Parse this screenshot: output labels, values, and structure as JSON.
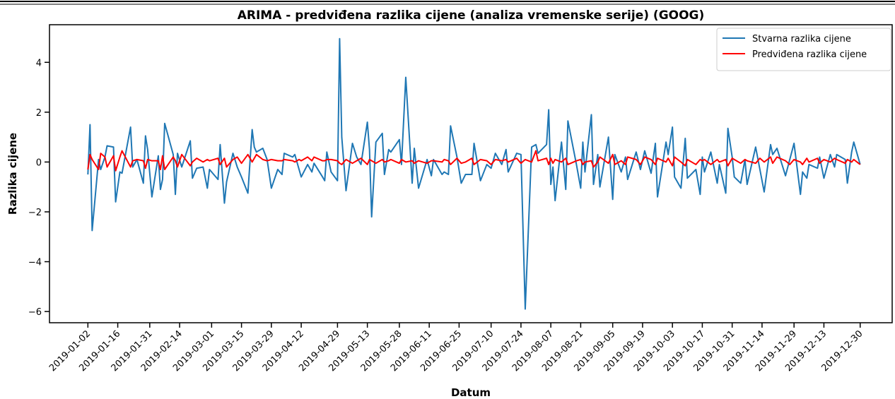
{
  "chart_data": {
    "type": "line",
    "title": "ARIMA - predviđena razlika cijene (analiza vremenske serije) (GOOG)",
    "xlabel": "Datum",
    "ylabel": "Razlika cijene",
    "legend": "upper right",
    "x": [
      "2019-01-02",
      "2019-01-03",
      "2019-01-04",
      "2019-01-07",
      "2019-01-08",
      "2019-01-10",
      "2019-01-11",
      "2019-01-14",
      "2019-01-15",
      "2019-01-17",
      "2019-01-18",
      "2019-01-22",
      "2019-01-23",
      "2019-01-25",
      "2019-01-28",
      "2019-01-29",
      "2019-01-30",
      "2019-02-01",
      "2019-02-04",
      "2019-02-05",
      "2019-02-06",
      "2019-02-07",
      "2019-02-11",
      "2019-02-12",
      "2019-02-13",
      "2019-02-15",
      "2019-02-19",
      "2019-02-20",
      "2019-02-22",
      "2019-02-25",
      "2019-02-27",
      "2019-02-28",
      "2019-03-04",
      "2019-03-05",
      "2019-03-07",
      "2019-03-08",
      "2019-03-11",
      "2019-03-13",
      "2019-03-15",
      "2019-03-18",
      "2019-03-20",
      "2019-03-21",
      "2019-03-22",
      "2019-03-25",
      "2019-03-27",
      "2019-03-29",
      "2019-04-01",
      "2019-04-03",
      "2019-04-04",
      "2019-04-08",
      "2019-04-09",
      "2019-04-11",
      "2019-04-12",
      "2019-04-15",
      "2019-04-17",
      "2019-04-18",
      "2019-04-22",
      "2019-04-23",
      "2019-04-24",
      "2019-04-26",
      "2019-04-29",
      "2019-04-30",
      "2019-05-01",
      "2019-05-03",
      "2019-05-06",
      "2019-05-08",
      "2019-05-10",
      "2019-05-13",
      "2019-05-14",
      "2019-05-15",
      "2019-05-17",
      "2019-05-20",
      "2019-05-21",
      "2019-05-23",
      "2019-05-24",
      "2019-05-28",
      "2019-05-29",
      "2019-05-31",
      "2019-06-03",
      "2019-06-04",
      "2019-06-06",
      "2019-06-10",
      "2019-06-12",
      "2019-06-13",
      "2019-06-17",
      "2019-06-18",
      "2019-06-20",
      "2019-06-21",
      "2019-06-24",
      "2019-06-26",
      "2019-06-28",
      "2019-07-01",
      "2019-07-02",
      "2019-07-05",
      "2019-07-08",
      "2019-07-10",
      "2019-07-12",
      "2019-07-15",
      "2019-07-17",
      "2019-07-18",
      "2019-07-22",
      "2019-07-24",
      "2019-07-26",
      "2019-07-29",
      "2019-07-31",
      "2019-08-01",
      "2019-08-05",
      "2019-08-06",
      "2019-08-07",
      "2019-08-08",
      "2019-08-09",
      "2019-08-12",
      "2019-08-14",
      "2019-08-15",
      "2019-08-19",
      "2019-08-21",
      "2019-08-22",
      "2019-08-23",
      "2019-08-26",
      "2019-08-27",
      "2019-08-29",
      "2019-08-30",
      "2019-09-03",
      "2019-09-05",
      "2019-09-06",
      "2019-09-09",
      "2019-09-11",
      "2019-09-12",
      "2019-09-16",
      "2019-09-18",
      "2019-09-20",
      "2019-09-23",
      "2019-09-25",
      "2019-09-26",
      "2019-09-30",
      "2019-10-01",
      "2019-10-03",
      "2019-10-04",
      "2019-10-07",
      "2019-10-09",
      "2019-10-10",
      "2019-10-14",
      "2019-10-16",
      "2019-10-17",
      "2019-10-18",
      "2019-10-21",
      "2019-10-24",
      "2019-10-25",
      "2019-10-28",
      "2019-10-29",
      "2019-10-31",
      "2019-11-01",
      "2019-11-04",
      "2019-11-06",
      "2019-11-07",
      "2019-11-11",
      "2019-11-13",
      "2019-11-15",
      "2019-11-18",
      "2019-11-19",
      "2019-11-21",
      "2019-11-25",
      "2019-11-27",
      "2019-11-29",
      "2019-12-02",
      "2019-12-03",
      "2019-12-05",
      "2019-12-06",
      "2019-12-10",
      "2019-12-11",
      "2019-12-13",
      "2019-12-16",
      "2019-12-18",
      "2019-12-19",
      "2019-12-23",
      "2019-12-24",
      "2019-12-26",
      "2019-12-27",
      "2019-12-30"
    ],
    "series": [
      {
        "name": "Stvarna razlika cijene",
        "color": "#1f77b4",
        "values": [
          -0.5,
          1.5,
          -2.75,
          0.1,
          -0.3,
          0.2,
          0.65,
          0.6,
          -1.6,
          -0.4,
          -0.45,
          1.4,
          -0.2,
          0.1,
          -0.85,
          1.05,
          0.5,
          -1.4,
          0.25,
          -1.1,
          -0.7,
          1.55,
          0.3,
          -1.3,
          0.35,
          -0.2,
          0.85,
          -0.65,
          -0.25,
          -0.2,
          -1.05,
          -0.3,
          -0.7,
          0.7,
          -1.65,
          -0.8,
          0.35,
          -0.2,
          -0.6,
          -1.25,
          1.3,
          0.6,
          0.4,
          0.55,
          0.1,
          -1.05,
          -0.3,
          -0.5,
          0.35,
          0.2,
          0.3,
          -0.3,
          -0.6,
          -0.1,
          -0.4,
          -0.05,
          -0.6,
          -0.75,
          0.4,
          -0.4,
          -0.75,
          4.95,
          1.0,
          -1.15,
          0.75,
          0.2,
          -0.1,
          1.6,
          0.5,
          -2.2,
          0.8,
          1.15,
          -0.5,
          0.5,
          0.4,
          0.9,
          -0.1,
          3.4,
          -0.85,
          0.55,
          -1.05,
          0.1,
          -0.55,
          0.1,
          -0.5,
          -0.4,
          -0.5,
          1.45,
          0.2,
          -0.85,
          -0.5,
          -0.5,
          0.75,
          -0.75,
          -0.1,
          -0.25,
          0.35,
          -0.1,
          0.5,
          -0.4,
          0.35,
          0.3,
          -5.9,
          0.6,
          0.7,
          0.35,
          0.7,
          2.1,
          -0.9,
          -0.2,
          -1.55,
          0.8,
          -1.1,
          1.65,
          -0.1,
          -1.05,
          0.8,
          -0.4,
          1.9,
          -0.9,
          0.3,
          -1.0,
          1.0,
          -1.5,
          0.3,
          -0.4,
          0.2,
          -0.7,
          0.4,
          -0.3,
          0.45,
          -0.45,
          0.75,
          -1.4,
          0.8,
          0.3,
          1.4,
          -0.6,
          -1.05,
          0.95,
          -0.65,
          -0.3,
          -1.3,
          0.2,
          -0.4,
          0.4,
          -0.85,
          -0.1,
          -1.25,
          1.35,
          0.2,
          -0.6,
          -0.85,
          0.1,
          -0.9,
          0.6,
          -0.3,
          -1.2,
          0.7,
          0.3,
          0.55,
          -0.55,
          0.1,
          0.75,
          -1.3,
          -0.4,
          -0.65,
          -0.1,
          -0.25,
          0.2,
          -0.65,
          0.3,
          -0.2,
          0.3,
          0.1,
          -0.85,
          0.4,
          0.8,
          -0.1
        ]
      },
      {
        "name": "Predviđena razlika cijene",
        "color": "#ff0000",
        "values": [
          -0.3,
          0.3,
          0.1,
          -0.3,
          0.35,
          0.2,
          -0.2,
          0.25,
          -0.35,
          0.2,
          0.45,
          -0.2,
          0.05,
          0.1,
          0.05,
          -0.25,
          0.1,
          0.05,
          0.05,
          -0.3,
          0.25,
          -0.3,
          0.2,
          0.05,
          -0.2,
          0.3,
          -0.15,
          0.0,
          0.15,
          0.0,
          0.1,
          0.05,
          0.15,
          -0.1,
          0.15,
          -0.2,
          0.1,
          0.2,
          -0.05,
          0.3,
          0.0,
          0.15,
          0.3,
          0.1,
          0.05,
          0.1,
          0.05,
          0.05,
          0.1,
          0.05,
          0.0,
          0.1,
          0.05,
          0.2,
          0.05,
          0.2,
          0.05,
          0.05,
          0.1,
          0.1,
          0.05,
          -0.05,
          -0.1,
          0.1,
          -0.05,
          0.05,
          0.15,
          -0.1,
          0.1,
          0.05,
          -0.05,
          0.1,
          0.0,
          0.05,
          0.1,
          -0.05,
          0.1,
          0.0,
          0.05,
          -0.05,
          0.05,
          -0.05,
          0.05,
          0.05,
          0.0,
          0.1,
          0.05,
          -0.1,
          0.15,
          -0.05,
          0.0,
          0.15,
          -0.1,
          0.1,
          0.05,
          -0.1,
          0.1,
          0.05,
          0.1,
          0.0,
          0.15,
          -0.05,
          0.1,
          0.0,
          0.45,
          0.05,
          0.15,
          -0.1,
          0.15,
          -0.05,
          0.1,
          0.0,
          0.15,
          -0.1,
          0.05,
          0.1,
          -0.1,
          0.0,
          0.05,
          -0.2,
          0.0,
          0.2,
          -0.05,
          0.3,
          -0.1,
          0.05,
          -0.1,
          0.2,
          0.1,
          -0.1,
          0.2,
          0.1,
          -0.1,
          0.15,
          0.0,
          0.15,
          -0.15,
          0.2,
          0.0,
          -0.15,
          0.1,
          -0.1,
          0.1,
          0.05,
          0.1,
          -0.1,
          0.1,
          0.0,
          0.1,
          -0.15,
          0.15,
          0.1,
          -0.05,
          0.1,
          0.05,
          -0.05,
          0.15,
          0.0,
          0.2,
          -0.05,
          0.2,
          0.05,
          -0.1,
          0.1,
          0.0,
          -0.1,
          0.15,
          0.0,
          0.15,
          -0.05,
          0.1,
          0.0,
          0.15,
          0.1,
          -0.05,
          0.1,
          0.0,
          0.1,
          -0.1
        ]
      }
    ],
    "xlim": [
      "2018-12-15",
      "2020-01-14"
    ],
    "xticks": [
      "2019-01-02",
      "2019-01-16",
      "2019-01-31",
      "2019-02-14",
      "2019-03-01",
      "2019-03-15",
      "2019-03-29",
      "2019-04-12",
      "2019-04-29",
      "2019-05-13",
      "2019-05-28",
      "2019-06-11",
      "2019-06-25",
      "2019-07-10",
      "2019-07-24",
      "2019-08-07",
      "2019-08-21",
      "2019-09-05",
      "2019-09-19",
      "2019-10-03",
      "2019-10-17",
      "2019-10-31",
      "2019-11-14",
      "2019-11-29",
      "2019-12-13",
      "2019-12-30"
    ],
    "ylim": [
      -6.45,
      5.51
    ],
    "yticks": [
      {
        "value": -6,
        "label": "−6"
      },
      {
        "value": -4,
        "label": "−4"
      },
      {
        "value": -2,
        "label": "−2"
      },
      0,
      2,
      4
    ]
  }
}
